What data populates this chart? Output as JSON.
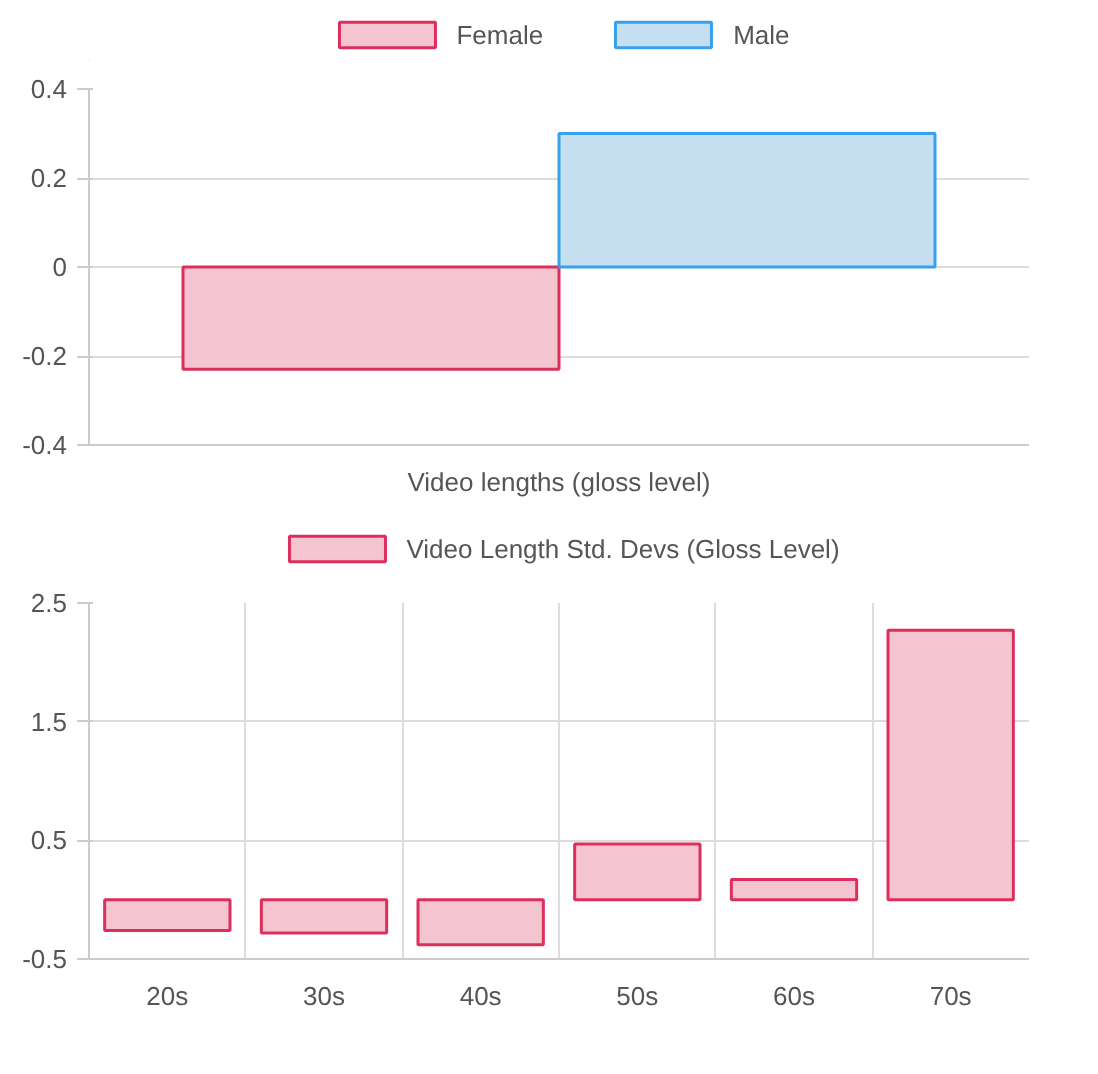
{
  "chart_data": [
    {
      "type": "bar",
      "categories": [
        "Video lengths (gloss level)"
      ],
      "series": [
        {
          "name": "Female",
          "color": "#f4c5d1",
          "values": [
            -0.23
          ]
        },
        {
          "name": "Male",
          "color": "#c5dff0",
          "values": [
            0.3
          ]
        }
      ],
      "ylim": [
        -0.4,
        0.4
      ],
      "yticks": [
        -0.4,
        -0.2,
        0,
        0.2,
        0.4
      ],
      "grid": "y",
      "legend": "top"
    },
    {
      "type": "bar",
      "categories": [
        "20s",
        "30s",
        "40s",
        "50s",
        "60s",
        "70s"
      ],
      "series": [
        {
          "name": "Video Length Std. Devs (Gloss Level)",
          "color": "#f4c5d1",
          "values": [
            -0.26,
            -0.28,
            -0.38,
            0.47,
            0.17,
            2.27
          ]
        }
      ],
      "ylim": [
        -0.5,
        2.5
      ],
      "yticks": [
        -0.5,
        0.5,
        1.5,
        2.5
      ],
      "grid": true,
      "legend": "top"
    }
  ]
}
